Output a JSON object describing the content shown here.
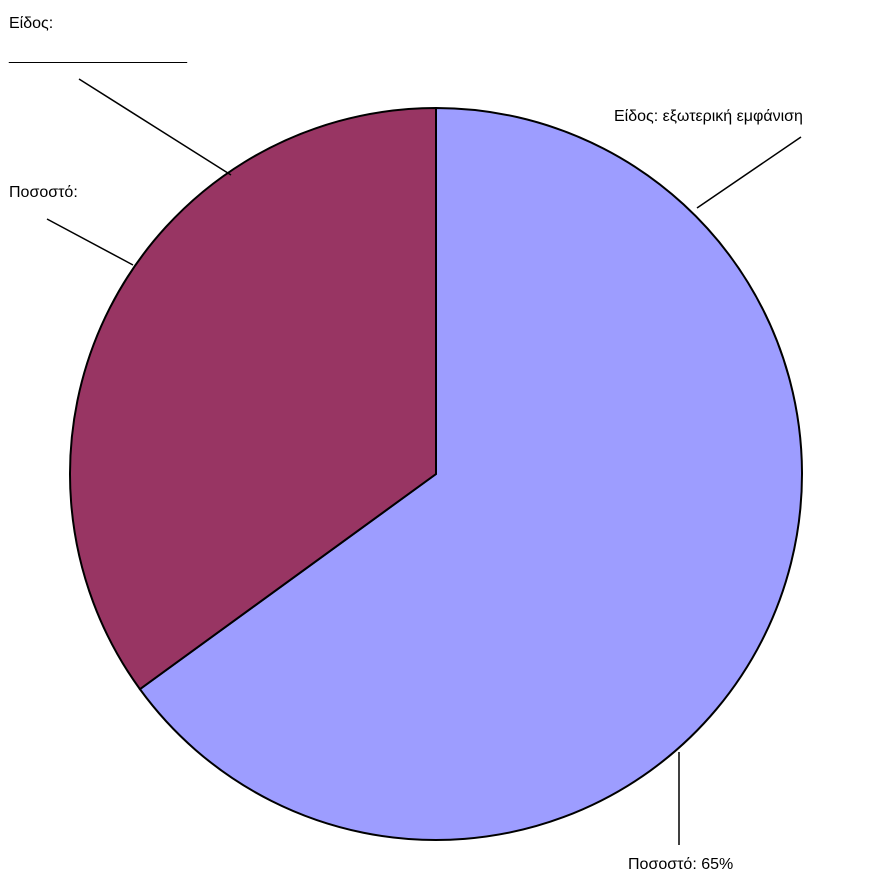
{
  "chart_data": {
    "type": "pie",
    "title": "",
    "start_angle_deg": 0,
    "direction": "clockwise",
    "slices": [
      {
        "value": 65,
        "color": "#9d9dff",
        "label_category": "Είδος: εξωτερική εμφάνιση",
        "label_value": "Ποσοστό: 65%"
      },
      {
        "value": 35,
        "color": "#983563",
        "label_category": "Είδος:",
        "label_category_blank": "____________________",
        "label_value": "Ποσοστό:"
      }
    ]
  }
}
